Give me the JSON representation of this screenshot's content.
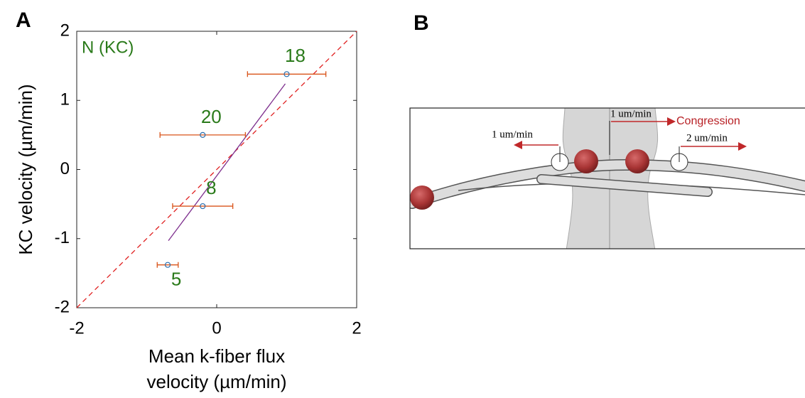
{
  "panel_labels": [
    "A",
    "B"
  ],
  "chart_data": {
    "type": "scatter",
    "annotation": "N (KC)",
    "x_label": [
      "Mean k-fiber flux",
      "velocity (µm/min)"
    ],
    "y_label": "KC velocity (µm/min)",
    "xlim": [
      -2,
      2
    ],
    "ylim": [
      -2,
      2
    ],
    "xticks": [
      -2,
      0,
      2
    ],
    "yticks": [
      -2,
      -1,
      0,
      1,
      2
    ],
    "series": [
      {
        "color": "#2a6fb0",
        "error_color": "#d9541a",
        "label_color": "#2a7a1a",
        "x": [
          1.0,
          -0.2,
          -0.2,
          -0.7
        ],
        "values": [
          1.38,
          0.5,
          -0.53,
          -1.38
        ],
        "x_errors": [
          0.56,
          0.61,
          0.43,
          0.15
        ],
        "n": [
          18,
          20,
          8,
          5
        ]
      }
    ],
    "fit_line": {
      "color": "#7e2f8e",
      "x": [
        -0.69,
        0.98
      ],
      "values": [
        -1.03,
        1.24
      ]
    },
    "reference_line": {
      "color": "#e02020",
      "x": [
        -2,
        2
      ],
      "values": [
        -2,
        2
      ]
    }
  },
  "diagram": {
    "labels": [
      "1 um/min",
      "1 um/min",
      "Congression",
      "2 um/min"
    ]
  }
}
